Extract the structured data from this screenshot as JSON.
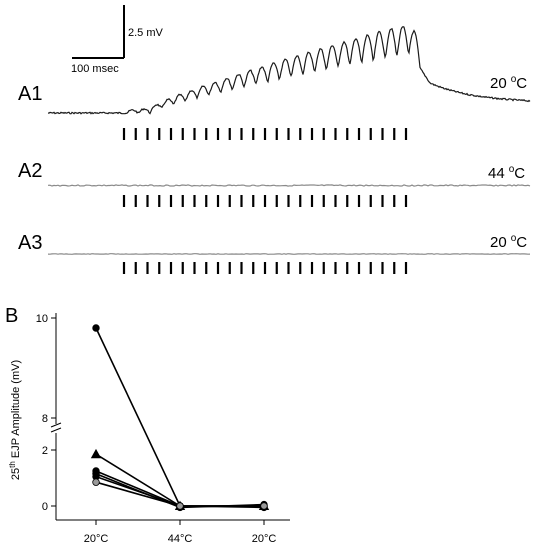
{
  "panels": {
    "a1": {
      "label": "A1",
      "temp_value": "20",
      "temp_unit": "C",
      "temp_degree": "o"
    },
    "a2": {
      "label": "A2",
      "temp_value": "44",
      "temp_unit": "C",
      "temp_degree": "o"
    },
    "a3": {
      "label": "A3",
      "temp_value": "20",
      "temp_unit": "C",
      "temp_degree": "o"
    },
    "b": {
      "label": "B"
    }
  },
  "scale_bar": {
    "voltage": "2.5 mV",
    "time": "100 msec"
  },
  "stimulus_ticks_per_row": 25,
  "chart_data": {
    "type": "scatter",
    "xlabel": "",
    "ylabel_prefix": "25",
    "ylabel_superscript": "th",
    "ylabel_suffix": " EJP Amplitude (mV)",
    "categories": [
      "20°C",
      "44°C",
      "20°C"
    ],
    "y_axis_break": true,
    "y_ticks": [
      "0",
      "2",
      "8",
      "10"
    ],
    "ylim": [
      0,
      10
    ],
    "lower_segment_range": [
      0,
      2.2
    ],
    "upper_segment_range": [
      7.8,
      10
    ],
    "series": [
      {
        "marker": "circle",
        "fill": "#000000",
        "values": [
          9.8,
          0.0,
          0.0
        ]
      },
      {
        "marker": "triangle",
        "fill": "#000000",
        "values": [
          1.85,
          0.0,
          0.0
        ]
      },
      {
        "marker": "circle",
        "fill": "#000000",
        "values": [
          1.25,
          0.0,
          0.0
        ]
      },
      {
        "marker": "circle",
        "fill": "#000000",
        "values": [
          1.15,
          -0.05,
          0.05
        ]
      },
      {
        "marker": "circle",
        "fill": "#000000",
        "values": [
          1.05,
          0.0,
          -0.05
        ]
      },
      {
        "marker": "circle",
        "fill": "#9a9a9a",
        "values": [
          0.85,
          0.0,
          0.0
        ]
      }
    ]
  }
}
